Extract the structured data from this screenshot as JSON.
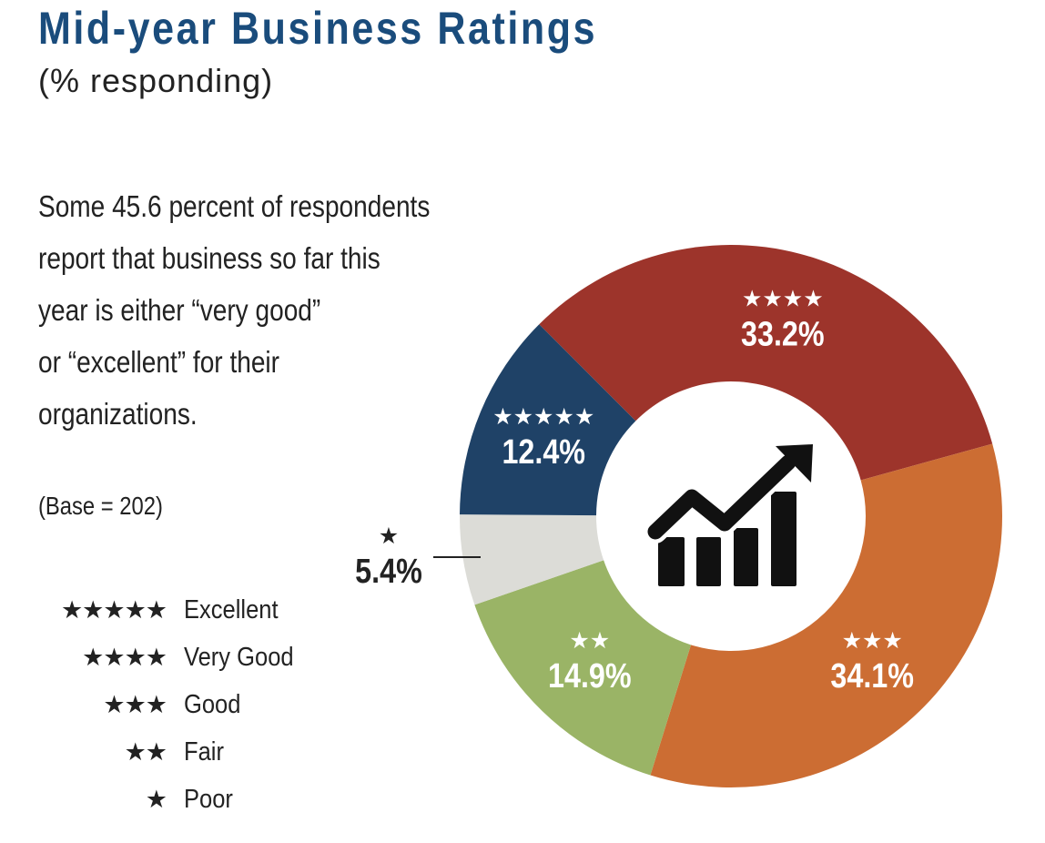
{
  "title": "Mid-year Business Ratings",
  "subtitle": "(% responding)",
  "note_lines": [
    "Some 45.6 percent of respondents",
    "report that business so far this",
    "year is either “very good”",
    "or “excellent” for their",
    "organizations."
  ],
  "base": "(Base = 202)",
  "legend": [
    {
      "stars": "★★★★★",
      "label": "Excellent"
    },
    {
      "stars": "★★★★",
      "label": "Very Good"
    },
    {
      "stars": "★★★",
      "label": "Good"
    },
    {
      "stars": "★★",
      "label": "Fair"
    },
    {
      "stars": "★",
      "label": "Poor"
    }
  ],
  "center_icon": "growth-chart-arrow-icon",
  "chart_data": {
    "type": "pie",
    "donut": true,
    "start": "top-left, clockwise",
    "slices": [
      {
        "category": "Very Good",
        "stars": "★★★★",
        "value": 33.2,
        "label": "33.2%",
        "color": "#9d342b"
      },
      {
        "category": "Good",
        "stars": "★★★",
        "value": 34.1,
        "label": "34.1%",
        "color": "#cc6d33"
      },
      {
        "category": "Fair",
        "stars": "★★",
        "value": 14.9,
        "label": "14.9%",
        "color": "#9ab466"
      },
      {
        "category": "Poor",
        "stars": "★",
        "value": 5.4,
        "label": "5.4%",
        "color": "#dcdcd7",
        "label_outside": true
      },
      {
        "category": "Excellent",
        "stars": "★★★★★",
        "value": 12.4,
        "label": "12.4%",
        "color": "#1f4267"
      }
    ]
  }
}
